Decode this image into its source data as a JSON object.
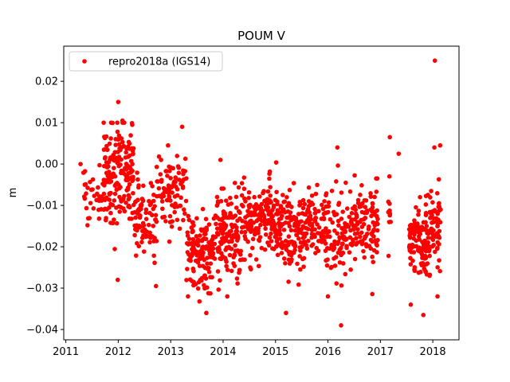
{
  "chart_data": {
    "type": "scatter",
    "title": "POUM V",
    "xlabel": "",
    "ylabel": "m",
    "xlim": [
      2010.96,
      2018.5
    ],
    "ylim": [
      -0.0425,
      0.0285
    ],
    "xticks": [
      2011,
      2012,
      2013,
      2014,
      2015,
      2016,
      2017,
      2018
    ],
    "yticks": [
      -0.04,
      -0.03,
      -0.02,
      -0.01,
      0.0,
      0.01,
      0.02
    ],
    "ytick_labels": [
      "−0.04",
      "−0.03",
      "−0.02",
      "−0.01",
      "0.00",
      "0.01",
      "0.02"
    ],
    "legend": {
      "position": "top-left",
      "entries": [
        {
          "label": "repro2018a (IGS14)",
          "color": "#ff0000",
          "marker": "circle"
        }
      ]
    },
    "marker_color": "#ff0000",
    "series": [
      {
        "name": "repro2018a (IGS14)",
        "clusters": [
          {
            "x": [
              2011.3,
              2011.72
            ],
            "mean": -0.009,
            "sd": 0.0035,
            "n": 35
          },
          {
            "x": [
              2011.72,
              2012.3
            ],
            "mean": -0.002,
            "sd": 0.0065,
            "n": 180
          },
          {
            "x": [
              2012.3,
              2012.72
            ],
            "mean": -0.013,
            "sd": 0.0045,
            "n": 80
          },
          {
            "x": [
              2012.72,
              2013.3
            ],
            "mean": -0.007,
            "sd": 0.005,
            "n": 90
          },
          {
            "x": [
              2013.3,
              2013.85
            ],
            "mean": -0.021,
            "sd": 0.0045,
            "n": 140
          },
          {
            "x": [
              2013.85,
              2014.35
            ],
            "mean": -0.017,
            "sd": 0.005,
            "n": 130
          },
          {
            "x": [
              2014.35,
              2014.95
            ],
            "mean": -0.013,
            "sd": 0.0045,
            "n": 140
          },
          {
            "x": [
              2014.95,
              2015.5
            ],
            "mean": -0.016,
            "sd": 0.005,
            "n": 140
          },
          {
            "x": [
              2015.5,
              2015.95
            ],
            "mean": -0.015,
            "sd": 0.0045,
            "n": 90
          },
          {
            "x": [
              2015.95,
              2016.5
            ],
            "mean": -0.016,
            "sd": 0.005,
            "n": 110
          },
          {
            "x": [
              2016.5,
              2016.95
            ],
            "mean": -0.014,
            "sd": 0.0045,
            "n": 100
          },
          {
            "x": [
              2017.15,
              2017.2
            ],
            "mean": -0.014,
            "sd": 0.004,
            "n": 10
          },
          {
            "x": [
              2017.55,
              2017.95
            ],
            "mean": -0.019,
            "sd": 0.004,
            "n": 120
          },
          {
            "x": [
              2017.95,
              2018.15
            ],
            "mean": -0.014,
            "sd": 0.005,
            "n": 60
          }
        ],
        "points": [
          {
            "x": 2011.28,
            "y": 0.0
          },
          {
            "x": 2011.36,
            "y": -0.005
          },
          {
            "x": 2012.0,
            "y": 0.015
          },
          {
            "x": 2012.08,
            "y": 0.0105
          },
          {
            "x": 2012.95,
            "y": 0.0045
          },
          {
            "x": 2013.95,
            "y": 0.001
          },
          {
            "x": 2016.18,
            "y": 0.004
          },
          {
            "x": 2016.25,
            "y": -0.039
          },
          {
            "x": 2017.18,
            "y": 0.0065
          },
          {
            "x": 2017.35,
            "y": 0.0025
          },
          {
            "x": 2018.04,
            "y": 0.025
          },
          {
            "x": 2018.14,
            "y": 0.0045
          },
          {
            "x": 2018.03,
            "y": 0.004
          },
          {
            "x": 2017.82,
            "y": -0.0365
          },
          {
            "x": 2013.68,
            "y": -0.036
          },
          {
            "x": 2015.2,
            "y": -0.036
          },
          {
            "x": 2017.58,
            "y": -0.034
          },
          {
            "x": 2012.72,
            "y": -0.0295
          },
          {
            "x": 2011.99,
            "y": -0.028
          },
          {
            "x": 2013.33,
            "y": -0.032
          },
          {
            "x": 2018.09,
            "y": -0.032
          },
          {
            "x": 2016.92,
            "y": -0.0035
          },
          {
            "x": 2014.08,
            "y": -0.032
          },
          {
            "x": 2016.0,
            "y": -0.032
          }
        ]
      }
    ]
  }
}
